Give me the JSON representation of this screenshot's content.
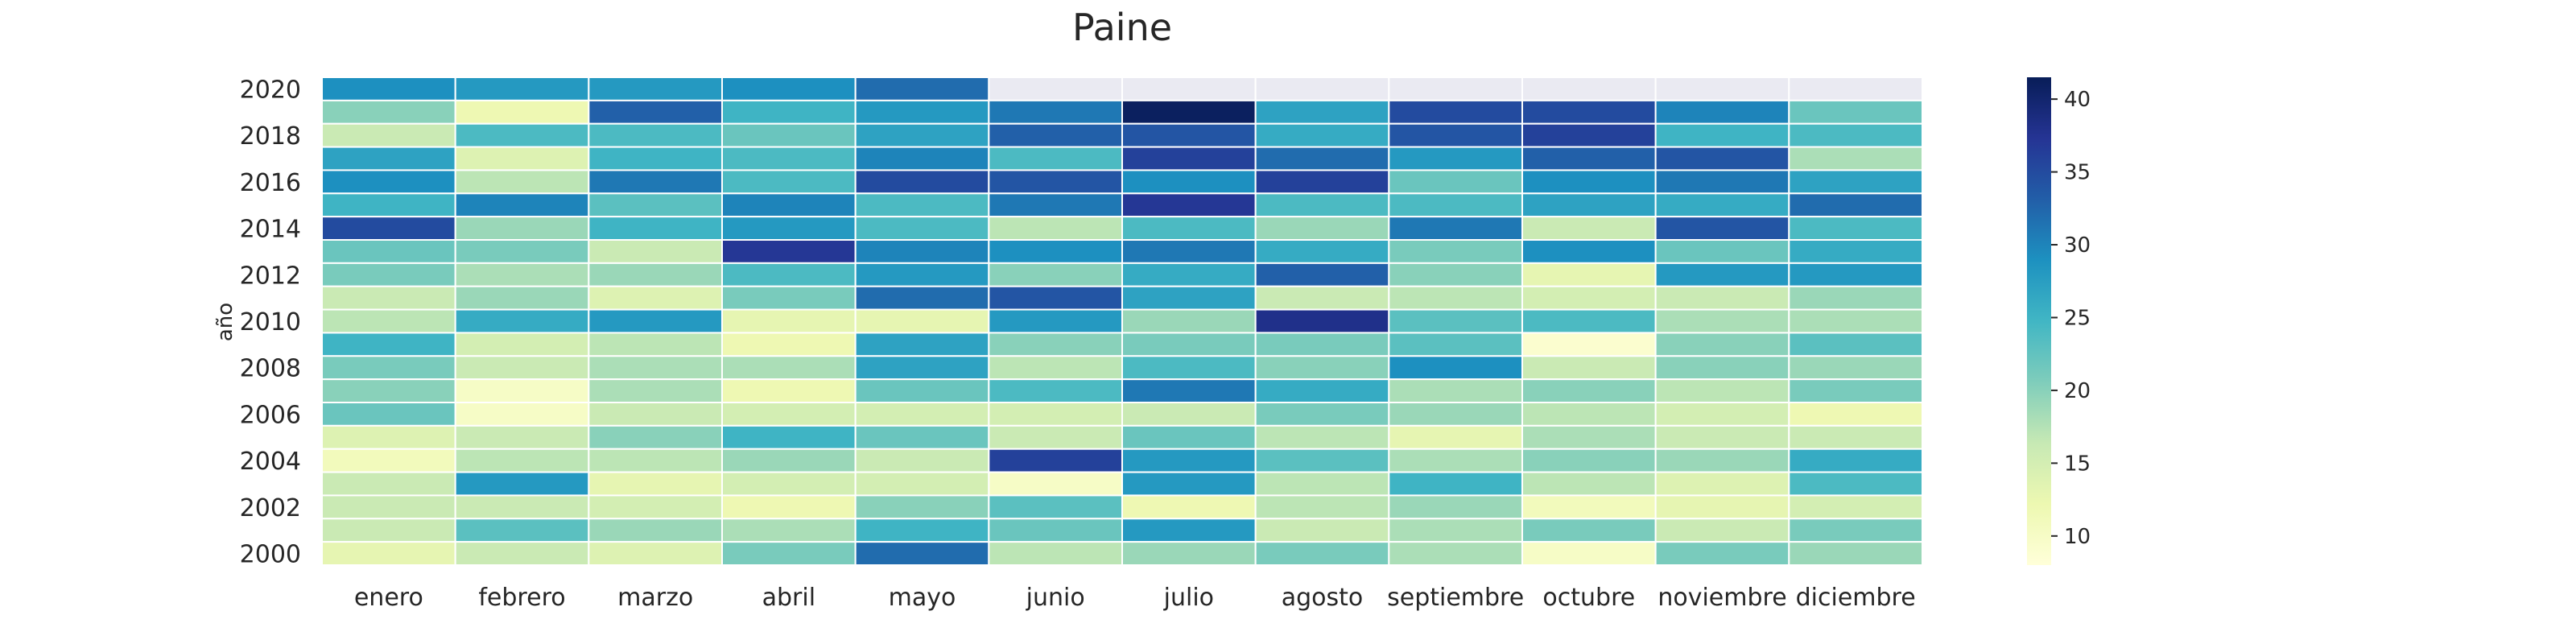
{
  "chart_data": {
    "type": "heatmap",
    "title": "Paine",
    "ylabel": "año",
    "xlabel": "",
    "colormap": "YlGnBu",
    "colorbar": {
      "vmin": 8,
      "vmax": 41.5,
      "ticks": [
        10,
        15,
        20,
        25,
        30,
        35,
        40
      ]
    },
    "missing_color": "#eaeaf2",
    "grid_line_color": "#ffffff",
    "x_categories": [
      "enero",
      "febrero",
      "marzo",
      "abril",
      "mayo",
      "junio",
      "julio",
      "agosto",
      "septiembre",
      "octubre",
      "noviembre",
      "diciembre"
    ],
    "y_categories": [
      2020,
      2019,
      2018,
      2017,
      2016,
      2015,
      2014,
      2013,
      2012,
      2011,
      2010,
      2009,
      2008,
      2007,
      2006,
      2005,
      2004,
      2003,
      2002,
      2001,
      2000
    ],
    "y_tick_labels": [
      "2020",
      "",
      "2018",
      "",
      "2016",
      "",
      "2014",
      "",
      "2012",
      "",
      "2010",
      "",
      "2008",
      "",
      "2006",
      "",
      "2004",
      "",
      "2002",
      "",
      "2000"
    ],
    "values": [
      [
        29,
        28,
        28,
        29,
        32,
        null,
        null,
        null,
        null,
        null,
        null,
        null
      ],
      [
        20,
        12,
        33,
        25,
        28,
        31,
        41,
        27,
        35,
        35,
        30,
        22
      ],
      [
        16,
        24,
        24,
        22,
        27,
        33,
        34,
        26,
        34,
        36,
        25,
        24
      ],
      [
        27,
        14,
        25,
        24,
        30,
        24,
        36,
        32,
        28,
        33,
        34,
        18
      ],
      [
        29,
        17,
        31,
        24,
        35,
        34,
        29,
        36,
        22,
        29,
        31,
        27
      ],
      [
        25,
        30,
        23,
        30,
        24,
        31,
        37,
        24,
        24,
        27,
        26,
        32
      ],
      [
        35,
        19,
        25,
        28,
        24,
        17,
        24,
        19,
        31,
        16,
        34,
        24
      ],
      [
        22,
        21,
        16,
        37,
        30,
        29,
        31,
        26,
        21,
        29,
        22,
        26
      ],
      [
        21,
        18,
        19,
        24,
        28,
        20,
        26,
        33,
        20,
        13,
        28,
        28
      ],
      [
        16,
        19,
        14,
        21,
        32,
        34,
        27,
        16,
        17,
        15,
        16,
        19
      ],
      [
        17,
        26,
        28,
        13,
        13,
        28,
        19,
        38,
        23,
        24,
        18,
        18
      ],
      [
        25,
        15,
        17,
        12,
        27,
        20,
        21,
        21,
        23,
        9,
        20,
        23
      ],
      [
        21,
        16,
        18,
        18,
        27,
        17,
        24,
        20,
        29,
        16,
        20,
        19
      ],
      [
        20,
        10,
        18,
        12,
        22,
        24,
        31,
        26,
        18,
        20,
        17,
        21
      ],
      [
        22,
        10,
        16,
        15,
        15,
        15,
        16,
        21,
        19,
        17,
        15,
        12
      ],
      [
        14,
        16,
        20,
        25,
        22,
        16,
        22,
        17,
        13,
        18,
        16,
        16
      ],
      [
        11,
        17,
        17,
        19,
        16,
        36,
        28,
        23,
        18,
        20,
        19,
        26
      ],
      [
        16,
        28,
        13,
        15,
        15,
        10,
        28,
        17,
        25,
        17,
        14,
        24
      ],
      [
        16,
        16,
        15,
        12,
        20,
        23,
        12,
        17,
        19,
        11,
        13,
        15
      ],
      [
        16,
        23,
        19,
        18,
        25,
        22,
        28,
        16,
        18,
        21,
        16,
        21
      ],
      [
        13,
        16,
        14,
        21,
        32,
        17,
        19,
        21,
        18,
        10,
        21,
        19
      ]
    ]
  }
}
